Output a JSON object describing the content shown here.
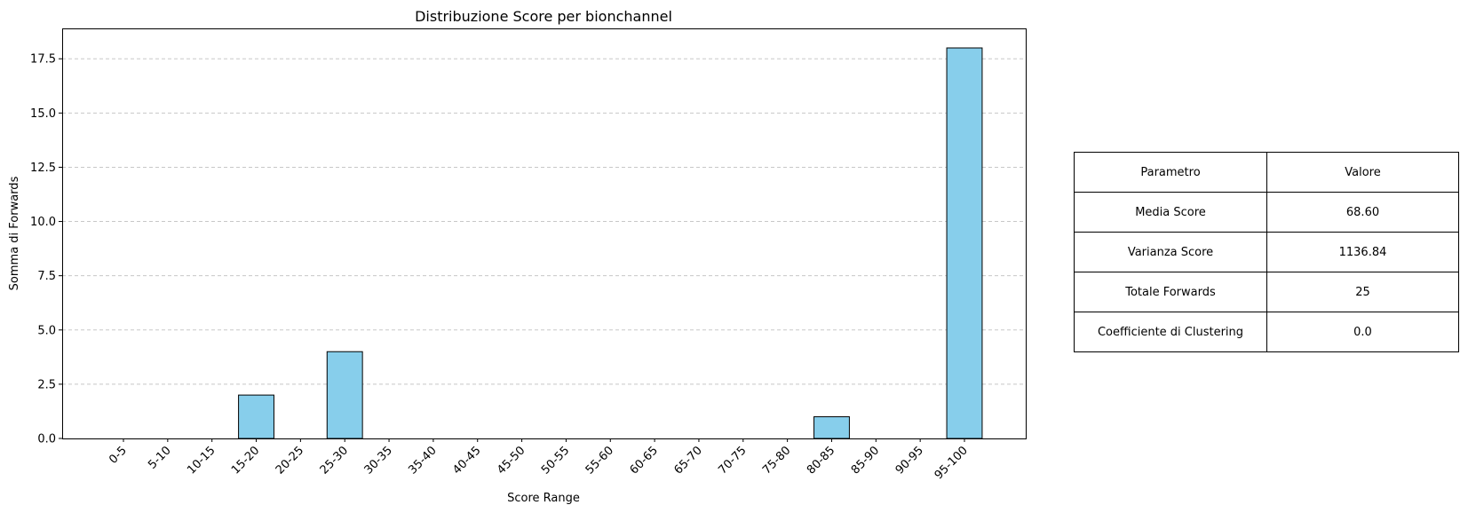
{
  "chart_data": {
    "type": "bar",
    "title": "Distribuzione Score per bionchannel",
    "xlabel": "Score Range",
    "ylabel": "Somma di Forwards",
    "categories": [
      "0-5",
      "5-10",
      "10-15",
      "15-20",
      "20-25",
      "25-30",
      "30-35",
      "35-40",
      "40-45",
      "45-50",
      "50-55",
      "55-60",
      "60-65",
      "65-70",
      "70-75",
      "75-80",
      "80-85",
      "85-90",
      "90-95",
      "95-100"
    ],
    "values": [
      0,
      0,
      0,
      2,
      0,
      4,
      0,
      0,
      0,
      0,
      0,
      0,
      0,
      0,
      0,
      0,
      1,
      0,
      0,
      18
    ],
    "ylim": [
      0,
      18.9
    ],
    "yticks": [
      "0.0",
      "2.5",
      "5.0",
      "7.5",
      "10.0",
      "12.5",
      "15.0",
      "17.5"
    ],
    "grid": "y-dashed",
    "bar_color": "#87CEEB",
    "edge_color": "#000000",
    "grid_color": "#c8c8c8"
  },
  "table": {
    "header": [
      "Parametro",
      "Valore"
    ],
    "rows": [
      [
        "Media Score",
        "68.60"
      ],
      [
        "Varianza Score",
        "1136.84"
      ],
      [
        "Totale Forwards",
        "25"
      ],
      [
        "Coefficiente di Clustering",
        "0.0"
      ]
    ]
  }
}
